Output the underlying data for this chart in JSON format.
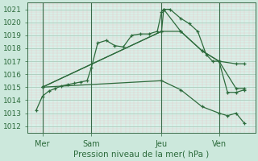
{
  "background_color": "#cce8dc",
  "plot_bg_color": "#d8f0e8",
  "grid_major_color": "#aaccbb",
  "grid_minor_color": "#e8c8c8",
  "line_color": "#2d6b3c",
  "vline_color": "#3a6a48",
  "xlabel": "Pression niveau de la mer( hPa )",
  "ylim": [
    1011.5,
    1021.5
  ],
  "yticks": [
    1012,
    1013,
    1014,
    1015,
    1016,
    1017,
    1018,
    1019,
    1020,
    1021
  ],
  "xlim": [
    -0.2,
    10.5
  ],
  "xtick_labels": [
    "Mer",
    "Sam",
    "Jeu",
    "Ven"
  ],
  "xtick_positions": [
    0.5,
    2.8,
    6.1,
    8.8
  ],
  "vline_positions": [
    0.5,
    2.8,
    6.1,
    8.8
  ],
  "series": [
    {
      "x": [
        0.2,
        0.5,
        0.8,
        1.1,
        1.4,
        1.7,
        2.0,
        2.3,
        2.6,
        2.8,
        3.1,
        3.5,
        3.9,
        4.3,
        4.7,
        5.1,
        5.5,
        5.9,
        6.1,
        6.2,
        6.5,
        7.0,
        7.4,
        7.8,
        8.2,
        8.5,
        8.8,
        9.2,
        9.6,
        10.0
      ],
      "y": [
        1013.2,
        1014.3,
        1014.7,
        1014.9,
        1015.1,
        1015.2,
        1015.3,
        1015.4,
        1015.5,
        1016.5,
        1018.4,
        1018.6,
        1018.2,
        1018.1,
        1019.0,
        1019.1,
        1019.1,
        1019.3,
        1020.8,
        1021.0,
        1021.0,
        1020.3,
        1019.9,
        1019.3,
        1017.5,
        1017.0,
        1017.0,
        1014.6,
        1014.6,
        1014.8
      ]
    },
    {
      "x": [
        0.5,
        6.1,
        6.2,
        7.0,
        8.0,
        8.8,
        9.6,
        10.0
      ],
      "y": [
        1015.0,
        1019.3,
        1021.0,
        1019.3,
        1017.8,
        1017.0,
        1014.9,
        1014.9
      ]
    },
    {
      "x": [
        0.5,
        6.1,
        7.0,
        8.0,
        8.8,
        9.6,
        10.0
      ],
      "y": [
        1015.0,
        1019.3,
        1019.3,
        1017.8,
        1017.0,
        1016.8,
        1016.8
      ]
    },
    {
      "x": [
        0.5,
        6.1,
        7.0,
        8.0,
        8.8,
        9.2,
        9.6,
        10.0
      ],
      "y": [
        1015.0,
        1015.5,
        1014.8,
        1013.5,
        1013.0,
        1012.8,
        1013.0,
        1012.2
      ]
    }
  ]
}
